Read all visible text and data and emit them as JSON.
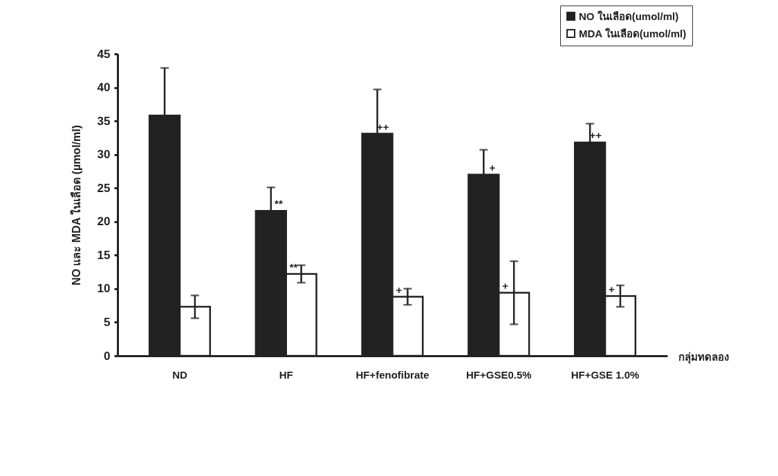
{
  "chart_data": {
    "type": "bar",
    "ylabel": "NO และ MDA ในเลือด (µmol/ml)",
    "xlabel": "กลุ่มทดลอง",
    "categories": [
      "ND",
      "HF",
      "HF+fenofibrate",
      "HF+GSE0.5%",
      "HF+GSE 1.0%"
    ],
    "series": [
      {
        "name": "NO ในเลือด(umol/ml)",
        "color": "#222222",
        "values": [
          35.8,
          21.6,
          33.1,
          27.0,
          31.8
        ],
        "errors": [
          7.1,
          3.5,
          6.6,
          3.7,
          2.8
        ]
      },
      {
        "name": "MDA ในเลือด(umol/ml)",
        "color": "#ffffff",
        "values": [
          7.3,
          12.2,
          8.8,
          9.4,
          8.9
        ],
        "errors": [
          1.7,
          1.3,
          1.2,
          4.7,
          1.6
        ]
      }
    ],
    "ylim": [
      0,
      45
    ],
    "yticks": [
      0,
      5,
      10,
      15,
      20,
      25,
      30,
      35,
      40,
      45
    ],
    "grid": false,
    "legend": "top right",
    "annotations": [
      {
        "text": "**",
        "x": "HF",
        "y": 21.6
      },
      {
        "text": "**",
        "x": "HF",
        "y": 12.2
      },
      {
        "text": "++",
        "x": "HF+fenofibrate",
        "y": 33.1
      },
      {
        "text": "+",
        "x": "HF+fenofibrate",
        "y": 8.8
      },
      {
        "text": "+",
        "x": "HF+GSE0.5%",
        "y": 27.0
      },
      {
        "text": "+",
        "x": "HF+GSE0.5%",
        "y": 9.4
      },
      {
        "text": "++",
        "x": "HF+GSE 1.0%",
        "y": 31.8
      },
      {
        "text": "+",
        "x": "HF+GSE 1.0%",
        "y": 8.9
      }
    ]
  }
}
